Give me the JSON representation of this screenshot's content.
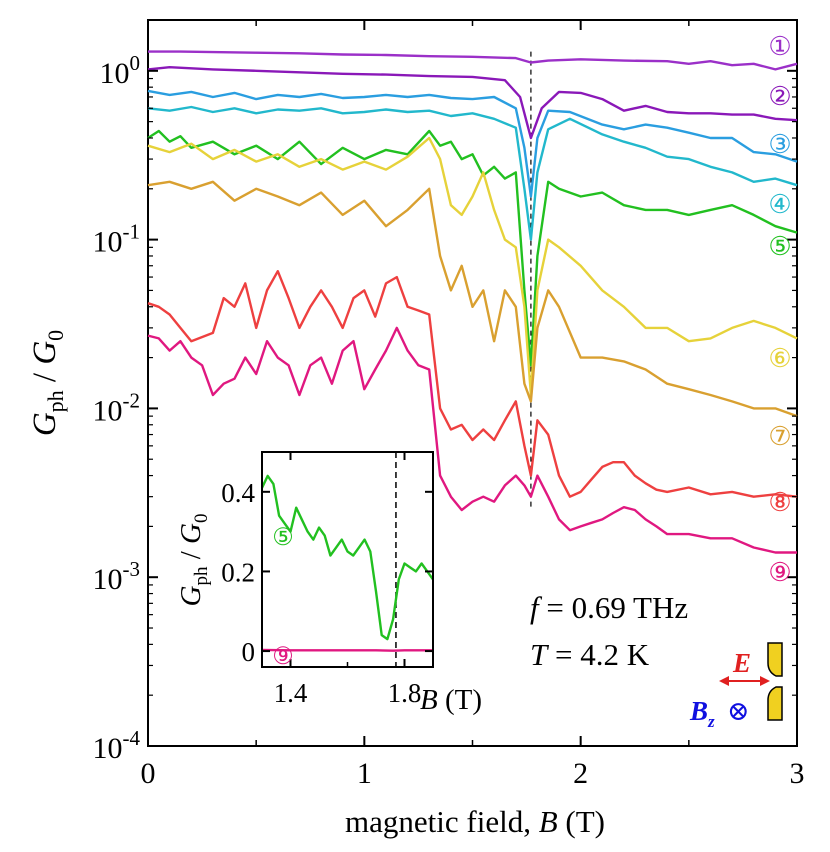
{
  "chart_data": [
    {
      "type": "line",
      "xlabel": {
        "prefix": "magnetic field, ",
        "var": "B",
        "unit": " (T)"
      },
      "ylabel": {
        "main": "G",
        "main_sub": "ph",
        "sep": " / ",
        "denom": "G",
        "denom_sub": "0"
      },
      "xlim": [
        0,
        3
      ],
      "ylim": [
        0.0001,
        2.0
      ],
      "yscale": "log",
      "xticks": [
        0,
        1,
        2,
        3
      ],
      "xtick_labels": [
        "0",
        "1",
        "2",
        "3"
      ],
      "yticks": [
        0.0001,
        0.001,
        0.01,
        0.1,
        1
      ],
      "ytick_labels": [
        {
          "base": "10",
          "exp": "-4"
        },
        {
          "base": "10",
          "exp": "-3"
        },
        {
          "base": "10",
          "exp": "-2"
        },
        {
          "base": "10",
          "exp": "-1"
        },
        {
          "base": "10",
          "exp": "0"
        }
      ],
      "vline_x": 1.77,
      "series": [
        {
          "name": "①",
          "color": "#9b30c8",
          "x": [
            0,
            0.15,
            0.3,
            0.5,
            0.7,
            0.9,
            1.1,
            1.3,
            1.5,
            1.7,
            1.77,
            1.85,
            2.0,
            2.2,
            2.4,
            2.5,
            2.6,
            2.7,
            2.8,
            2.9,
            3.0
          ],
          "y": [
            1.3,
            1.3,
            1.29,
            1.28,
            1.27,
            1.25,
            1.24,
            1.22,
            1.21,
            1.19,
            1.12,
            1.15,
            1.17,
            1.15,
            1.14,
            1.1,
            1.14,
            1.08,
            1.1,
            1.02,
            1.1
          ]
        },
        {
          "name": "②",
          "color": "#8a18b8",
          "x": [
            0,
            0.1,
            0.3,
            0.5,
            0.7,
            0.9,
            1.1,
            1.3,
            1.5,
            1.65,
            1.72,
            1.77,
            1.82,
            1.9,
            2.0,
            2.1,
            2.2,
            2.3,
            2.4,
            2.5,
            2.6,
            2.7,
            2.8,
            2.9,
            3.0
          ],
          "y": [
            1.02,
            1.05,
            1.02,
            1.0,
            0.98,
            0.96,
            0.95,
            0.93,
            0.92,
            0.88,
            0.7,
            0.4,
            0.6,
            0.75,
            0.74,
            0.68,
            0.58,
            0.62,
            0.57,
            0.56,
            0.56,
            0.55,
            0.55,
            0.52,
            0.51
          ]
        },
        {
          "name": "③",
          "color": "#2a9ee0",
          "x": [
            0,
            0.1,
            0.2,
            0.3,
            0.4,
            0.5,
            0.6,
            0.7,
            0.8,
            0.9,
            1.0,
            1.1,
            1.2,
            1.3,
            1.4,
            1.5,
            1.6,
            1.7,
            1.74,
            1.77,
            1.8,
            1.85,
            1.95,
            2.1,
            2.2,
            2.3,
            2.4,
            2.5,
            2.6,
            2.7,
            2.8,
            2.9,
            3.0
          ],
          "y": [
            0.76,
            0.72,
            0.75,
            0.7,
            0.74,
            0.68,
            0.72,
            0.7,
            0.73,
            0.69,
            0.7,
            0.72,
            0.7,
            0.72,
            0.69,
            0.68,
            0.7,
            0.6,
            0.35,
            0.18,
            0.4,
            0.58,
            0.57,
            0.48,
            0.45,
            0.48,
            0.46,
            0.43,
            0.4,
            0.4,
            0.33,
            0.32,
            0.29
          ]
        },
        {
          "name": "④",
          "color": "#22b8cc",
          "x": [
            0,
            0.1,
            0.2,
            0.3,
            0.4,
            0.5,
            0.6,
            0.7,
            0.8,
            0.9,
            1.0,
            1.1,
            1.2,
            1.3,
            1.4,
            1.5,
            1.6,
            1.7,
            1.74,
            1.77,
            1.8,
            1.85,
            1.95,
            2.1,
            2.2,
            2.3,
            2.4,
            2.5,
            2.6,
            2.7,
            2.8,
            2.9,
            3.0
          ],
          "y": [
            0.6,
            0.58,
            0.61,
            0.57,
            0.6,
            0.56,
            0.59,
            0.58,
            0.6,
            0.56,
            0.57,
            0.59,
            0.57,
            0.58,
            0.54,
            0.56,
            0.52,
            0.46,
            0.2,
            0.1,
            0.25,
            0.45,
            0.52,
            0.42,
            0.38,
            0.35,
            0.31,
            0.3,
            0.27,
            0.25,
            0.22,
            0.23,
            0.21
          ]
        },
        {
          "name": "⑤",
          "color": "#22c020",
          "x": [
            0,
            0.05,
            0.1,
            0.15,
            0.2,
            0.3,
            0.4,
            0.5,
            0.6,
            0.7,
            0.8,
            0.9,
            1.0,
            1.1,
            1.2,
            1.3,
            1.35,
            1.4,
            1.45,
            1.5,
            1.55,
            1.6,
            1.65,
            1.7,
            1.74,
            1.77,
            1.8,
            1.85,
            1.9,
            2.0,
            2.1,
            2.2,
            2.3,
            2.4,
            2.5,
            2.6,
            2.7,
            2.8,
            2.9,
            3.0
          ],
          "y": [
            0.4,
            0.44,
            0.38,
            0.41,
            0.35,
            0.38,
            0.32,
            0.36,
            0.3,
            0.38,
            0.28,
            0.35,
            0.3,
            0.34,
            0.32,
            0.44,
            0.36,
            0.38,
            0.3,
            0.32,
            0.24,
            0.27,
            0.23,
            0.25,
            0.05,
            0.018,
            0.08,
            0.22,
            0.2,
            0.18,
            0.19,
            0.16,
            0.15,
            0.15,
            0.14,
            0.15,
            0.16,
            0.14,
            0.12,
            0.11
          ]
        },
        {
          "name": "⑥",
          "color": "#e6d23a",
          "x": [
            0,
            0.1,
            0.2,
            0.3,
            0.4,
            0.5,
            0.6,
            0.7,
            0.8,
            0.9,
            1.0,
            1.1,
            1.2,
            1.3,
            1.35,
            1.4,
            1.45,
            1.5,
            1.55,
            1.6,
            1.65,
            1.7,
            1.74,
            1.77,
            1.8,
            1.85,
            1.9,
            2.0,
            2.1,
            2.2,
            2.3,
            2.4,
            2.5,
            2.6,
            2.7,
            2.8,
            2.9,
            3.0
          ],
          "y": [
            0.36,
            0.33,
            0.37,
            0.3,
            0.34,
            0.29,
            0.32,
            0.27,
            0.3,
            0.26,
            0.29,
            0.26,
            0.31,
            0.4,
            0.3,
            0.16,
            0.14,
            0.18,
            0.25,
            0.15,
            0.1,
            0.09,
            0.04,
            0.012,
            0.05,
            0.1,
            0.09,
            0.07,
            0.05,
            0.04,
            0.03,
            0.03,
            0.025,
            0.026,
            0.03,
            0.033,
            0.03,
            0.026
          ]
        },
        {
          "name": "⑦",
          "color": "#d9a030",
          "x": [
            0,
            0.1,
            0.2,
            0.3,
            0.4,
            0.5,
            0.6,
            0.7,
            0.8,
            0.9,
            1.0,
            1.1,
            1.2,
            1.3,
            1.35,
            1.4,
            1.45,
            1.5,
            1.55,
            1.6,
            1.65,
            1.7,
            1.74,
            1.77,
            1.8,
            1.85,
            1.9,
            2.0,
            2.1,
            2.2,
            2.3,
            2.4,
            2.5,
            2.6,
            2.7,
            2.8,
            2.9,
            3.0
          ],
          "y": [
            0.21,
            0.22,
            0.2,
            0.22,
            0.17,
            0.2,
            0.18,
            0.16,
            0.19,
            0.14,
            0.17,
            0.12,
            0.15,
            0.2,
            0.08,
            0.05,
            0.07,
            0.04,
            0.05,
            0.025,
            0.05,
            0.04,
            0.014,
            0.011,
            0.03,
            0.05,
            0.04,
            0.02,
            0.02,
            0.019,
            0.017,
            0.014,
            0.013,
            0.012,
            0.011,
            0.01,
            0.01,
            0.009
          ]
        },
        {
          "name": "⑧",
          "color": "#ee4040",
          "x": [
            0,
            0.05,
            0.1,
            0.15,
            0.2,
            0.3,
            0.35,
            0.4,
            0.45,
            0.5,
            0.55,
            0.6,
            0.65,
            0.7,
            0.75,
            0.8,
            0.85,
            0.9,
            0.95,
            1.0,
            1.05,
            1.1,
            1.15,
            1.2,
            1.25,
            1.3,
            1.35,
            1.4,
            1.45,
            1.5,
            1.55,
            1.6,
            1.65,
            1.7,
            1.74,
            1.77,
            1.8,
            1.85,
            1.9,
            1.95,
            2.0,
            2.05,
            2.1,
            2.15,
            2.2,
            2.25,
            2.3,
            2.35,
            2.4,
            2.5,
            2.6,
            2.7,
            2.8,
            2.9,
            3.0
          ],
          "y": [
            0.042,
            0.04,
            0.036,
            0.03,
            0.025,
            0.028,
            0.045,
            0.04,
            0.055,
            0.03,
            0.05,
            0.065,
            0.045,
            0.03,
            0.04,
            0.05,
            0.04,
            0.03,
            0.045,
            0.05,
            0.035,
            0.055,
            0.06,
            0.04,
            0.038,
            0.036,
            0.01,
            0.0075,
            0.008,
            0.0065,
            0.0075,
            0.0065,
            0.0085,
            0.011,
            0.006,
            0.004,
            0.0085,
            0.007,
            0.004,
            0.003,
            0.0032,
            0.0038,
            0.0045,
            0.0048,
            0.0048,
            0.004,
            0.0036,
            0.0033,
            0.0032,
            0.0034,
            0.0031,
            0.0032,
            0.003,
            0.0031,
            0.003
          ]
        },
        {
          "name": "⑨",
          "color": "#e01880",
          "x": [
            0,
            0.05,
            0.1,
            0.15,
            0.2,
            0.25,
            0.3,
            0.35,
            0.4,
            0.45,
            0.5,
            0.55,
            0.6,
            0.65,
            0.7,
            0.75,
            0.8,
            0.85,
            0.9,
            0.95,
            1.0,
            1.05,
            1.1,
            1.15,
            1.2,
            1.25,
            1.3,
            1.35,
            1.4,
            1.45,
            1.5,
            1.55,
            1.6,
            1.65,
            1.7,
            1.74,
            1.77,
            1.8,
            1.85,
            1.9,
            1.95,
            2.0,
            2.05,
            2.1,
            2.15,
            2.2,
            2.25,
            2.3,
            2.35,
            2.4,
            2.5,
            2.6,
            2.7,
            2.8,
            2.9,
            3.0
          ],
          "y": [
            0.027,
            0.026,
            0.022,
            0.025,
            0.02,
            0.018,
            0.012,
            0.014,
            0.015,
            0.02,
            0.016,
            0.025,
            0.02,
            0.018,
            0.012,
            0.018,
            0.02,
            0.014,
            0.022,
            0.025,
            0.013,
            0.017,
            0.022,
            0.03,
            0.022,
            0.018,
            0.017,
            0.004,
            0.003,
            0.0025,
            0.0028,
            0.003,
            0.0028,
            0.0035,
            0.004,
            0.0035,
            0.003,
            0.004,
            0.003,
            0.0022,
            0.0019,
            0.002,
            0.0021,
            0.0022,
            0.0024,
            0.0026,
            0.0025,
            0.0022,
            0.002,
            0.0018,
            0.0018,
            0.0017,
            0.0017,
            0.0015,
            0.0014,
            0.0014
          ]
        }
      ]
    },
    {
      "type": "line",
      "xlabel": {
        "var": "B",
        "unit": " (T)"
      },
      "ylabel": {
        "main": "G",
        "main_sub": "ph",
        "sep": " / ",
        "denom": "G",
        "denom_sub": "0"
      },
      "xlim": [
        1.3,
        1.9
      ],
      "ylim": [
        -0.04,
        0.5
      ],
      "xticks": [
        1.4,
        1.8
      ],
      "xtick_labels": [
        "1.4",
        "1.8"
      ],
      "yticks": [
        0,
        0.2,
        0.4
      ],
      "ytick_labels": [
        "0",
        "0.2",
        "0.4"
      ],
      "vline_x": 1.77,
      "series": [
        {
          "name": "⑤",
          "color": "#22c020",
          "x": [
            1.3,
            1.32,
            1.34,
            1.36,
            1.38,
            1.4,
            1.42,
            1.44,
            1.46,
            1.48,
            1.5,
            1.52,
            1.54,
            1.56,
            1.58,
            1.6,
            1.62,
            1.64,
            1.66,
            1.68,
            1.7,
            1.72,
            1.74,
            1.76,
            1.78,
            1.8,
            1.82,
            1.84,
            1.86,
            1.88,
            1.9
          ],
          "y": [
            0.41,
            0.44,
            0.42,
            0.34,
            0.32,
            0.3,
            0.36,
            0.33,
            0.3,
            0.28,
            0.31,
            0.29,
            0.24,
            0.26,
            0.28,
            0.25,
            0.24,
            0.26,
            0.28,
            0.25,
            0.15,
            0.04,
            0.03,
            0.08,
            0.18,
            0.22,
            0.21,
            0.2,
            0.22,
            0.2,
            0.18
          ]
        },
        {
          "name": "⑨",
          "color": "#e01880",
          "x": [
            1.3,
            1.4,
            1.5,
            1.6,
            1.7,
            1.76,
            1.8,
            1.9
          ],
          "y": [
            0.003,
            0.002,
            0.002,
            0.002,
            0.002,
            0.001,
            0.002,
            0.002
          ]
        }
      ]
    }
  ],
  "annotations": {
    "f_var": "f",
    "f_value": " = 0.69 THz",
    "T_var": "T",
    "T_value": " = 4.2 K",
    "E_label": "E",
    "B_label": "B",
    "B_sub": "z",
    "otimes": "⊗",
    "E_color": "#e02020",
    "B_color": "#1010e0",
    "contact_color": "#f0d020"
  }
}
